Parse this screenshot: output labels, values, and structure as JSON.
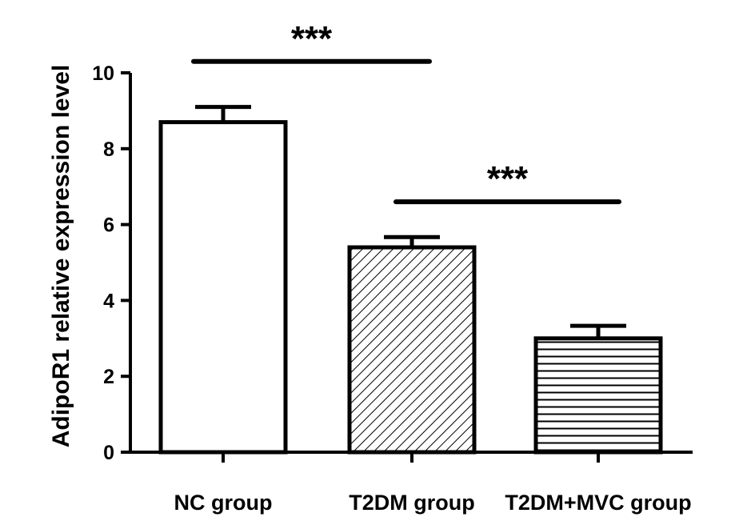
{
  "chart_data": {
    "type": "bar",
    "title": "",
    "xlabel": "",
    "ylabel": "AdipoR1 relative expression level",
    "ylim": [
      0,
      10
    ],
    "yticks": [
      "0",
      "2",
      "4",
      "6",
      "8",
      "10"
    ],
    "categories": [
      "NC group",
      "T2DM group",
      "T2DM+MVC group"
    ],
    "values": [
      8.7,
      5.4,
      3.0
    ],
    "errors": [
      0.4,
      0.27,
      0.33
    ],
    "fills": [
      "plain",
      "diagonal-hatch",
      "horizontal-hatch"
    ],
    "grid": false,
    "significance": [
      {
        "from": 0,
        "to": 1,
        "y": 10.3,
        "label": "***"
      },
      {
        "from": 1,
        "to": 2,
        "y": 6.6,
        "label": "***"
      }
    ]
  }
}
